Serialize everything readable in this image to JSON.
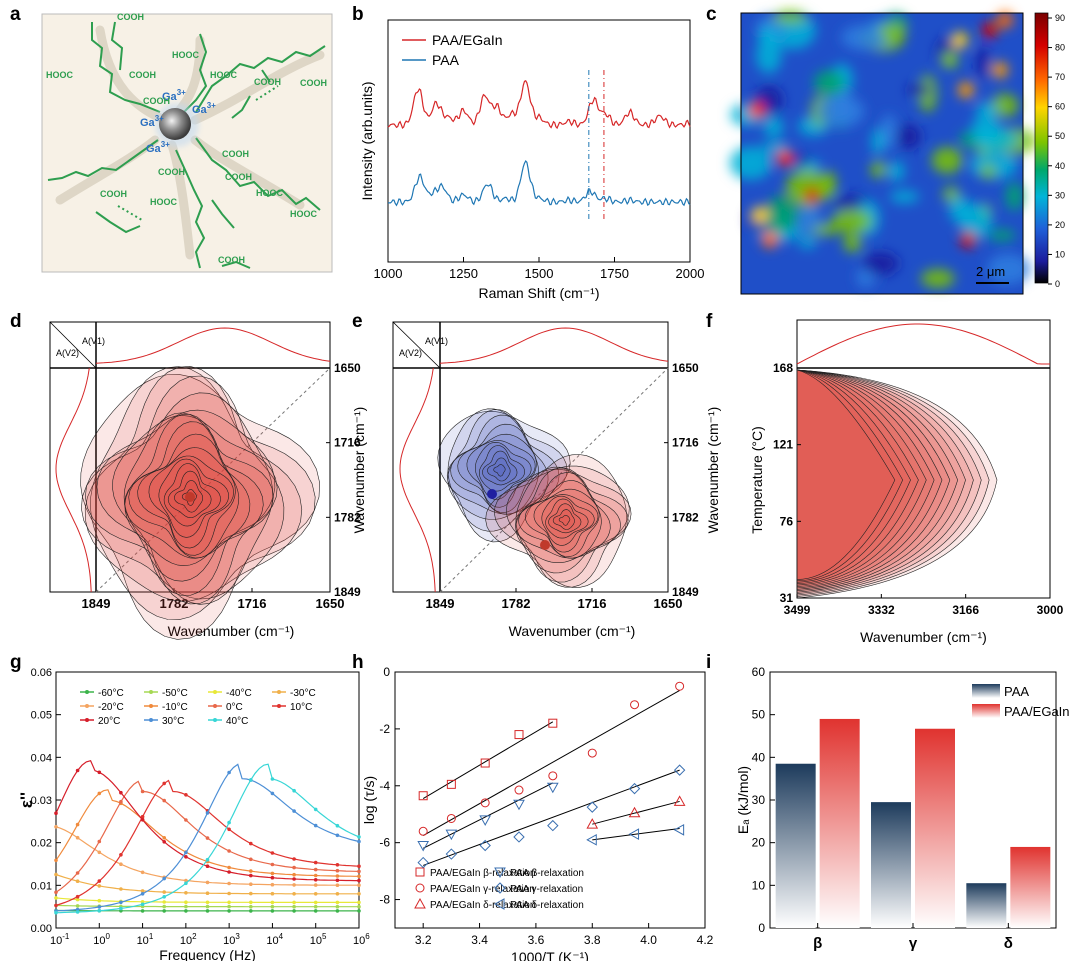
{
  "panel_labels": [
    "a",
    "b",
    "c",
    "d",
    "e",
    "f",
    "g",
    "h",
    "i"
  ],
  "colors": {
    "red": "#d62728",
    "blue": "#1f77b4",
    "green": "#2e9e4f",
    "navy": "#1d3b5c",
    "salmon": "#e0332f"
  },
  "panel_a": {
    "cooh": [
      "COOH",
      "COOH",
      "COOH",
      "COOH",
      "COOH",
      "COOH",
      "COOH",
      "COOH",
      "COOH",
      "COOH"
    ],
    "hooc": [
      "HOOC",
      "HOOC",
      "HOOC",
      "HOOC",
      "HOOC",
      "HOOC"
    ],
    "ga": [
      "Ga3+",
      "Ga3+",
      "Ga3+",
      "Ga3+"
    ]
  },
  "chart_data": [
    {
      "id": "b",
      "type": "line",
      "xlabel": "Raman Shift (cm⁻¹)",
      "ylabel": "Intensity (arb.units)",
      "xlim": [
        1000,
        2000
      ],
      "xticks": [
        "1000",
        "1250",
        "1500",
        "1750",
        "2000"
      ],
      "series": [
        {
          "name": "PAA/EGaIn",
          "color": "#d62728",
          "peaks": [
            [
              1000,
              0.0
            ],
            [
              1100,
              1.0
            ],
            [
              1160,
              0.6
            ],
            [
              1200,
              0.2
            ],
            [
              1250,
              0.4
            ],
            [
              1320,
              0.8
            ],
            [
              1360,
              0.5
            ],
            [
              1410,
              0.3
            ],
            [
              1455,
              1.2
            ],
            [
              1500,
              0.2
            ],
            [
              1600,
              0.1
            ],
            [
              1680,
              0.7
            ],
            [
              1720,
              0.3
            ],
            [
              1800,
              0.35
            ],
            [
              1900,
              0.25
            ],
            [
              2000,
              0.05
            ]
          ],
          "offset": 1
        },
        {
          "name": "PAA",
          "color": "#1f77b4",
          "peaks": [
            [
              1000,
              0.0
            ],
            [
              1105,
              0.7
            ],
            [
              1150,
              0.2
            ],
            [
              1180,
              0.4
            ],
            [
              1250,
              0.2
            ],
            [
              1330,
              0.5
            ],
            [
              1390,
              0.1
            ],
            [
              1455,
              1.1
            ],
            [
              1500,
              0.1
            ],
            [
              1600,
              0.05
            ],
            [
              1670,
              0.3
            ],
            [
              1720,
              0.1
            ],
            [
              1800,
              0.05
            ],
            [
              2000,
              0.0
            ]
          ],
          "offset": 0
        }
      ],
      "vlines": [
        1665,
        1715
      ]
    },
    {
      "id": "c",
      "type": "heatmap",
      "colorbar_ticks": [
        "90",
        "80",
        "70",
        "60",
        "50",
        "40",
        "30",
        "20",
        "10",
        "0"
      ],
      "scalebar": "2 μm"
    },
    {
      "id": "d",
      "type": "heatmap",
      "xlabel": "Wavenumber (cm⁻¹)",
      "ylabel": "",
      "xticks": [
        "1849",
        "1782",
        "1716",
        "1650"
      ],
      "yticks": [
        "1650",
        "1716",
        "1782",
        "1849"
      ],
      "corner": [
        "A(V1)",
        "A(V2)"
      ]
    },
    {
      "id": "e",
      "type": "heatmap",
      "xlabel": "Wavenumber (cm⁻¹)",
      "ylabel": "Wavenumber (cm⁻¹)",
      "xticks": [
        "1849",
        "1782",
        "1716",
        "1650"
      ],
      "yticks": [
        "1650",
        "1716",
        "1782",
        "1849"
      ],
      "corner": [
        "A(V1)",
        "A(V2)"
      ]
    },
    {
      "id": "f",
      "type": "heatmap",
      "xlabel": "Wavenumber (cm⁻¹)",
      "ylabel": "Temperature (°C)",
      "ylabel_d": "Wavenumber (cm⁻¹)",
      "xticks": [
        "3499",
        "3332",
        "3166",
        "3000"
      ],
      "yticks": [
        "168",
        "121",
        "76",
        "31"
      ]
    },
    {
      "id": "g",
      "type": "line",
      "xlabel": "Frequency (Hz)",
      "ylabel": "ε''",
      "ylim": [
        0,
        0.06
      ],
      "yticks": [
        "0.00",
        "0.01",
        "0.02",
        "0.03",
        "0.04",
        "0.05",
        "0.06"
      ],
      "xlim_log": [
        -1,
        6
      ],
      "xticks_exp": [
        "-1",
        "0",
        "1",
        "2",
        "3",
        "4",
        "5",
        "6"
      ],
      "series": [
        {
          "name": "-60°C",
          "color": "#3cb44b",
          "peak": [
            -5.0,
            0.007
          ],
          "base": 0.004
        },
        {
          "name": "-50°C",
          "color": "#a6d854",
          "peak": [
            -4.0,
            0.008
          ],
          "base": 0.005
        },
        {
          "name": "-40°C",
          "color": "#e8e838",
          "peak": [
            -3.0,
            0.01
          ],
          "base": 0.006
        },
        {
          "name": "-30°C",
          "color": "#f0b04a",
          "peak": [
            -2.0,
            0.015
          ],
          "base": 0.008
        },
        {
          "name": "-20°C",
          "color": "#f4a460",
          "peak": [
            -1.2,
            0.024
          ],
          "base": 0.01
        },
        {
          "name": "-10°C",
          "color": "#f08a3c",
          "peak": [
            0.2,
            0.03
          ],
          "base": 0.012
        },
        {
          "name": "0°C",
          "color": "#e8684a",
          "peak": [
            1.0,
            0.032
          ],
          "base": 0.013
        },
        {
          "name": "10°C",
          "color": "#e0332f",
          "peak": [
            1.7,
            0.032
          ],
          "base": 0.014
        },
        {
          "name": "20°C",
          "color": "#d61e2a",
          "peak": [
            -0.2,
            0.037
          ],
          "base": 0.011
        },
        {
          "name": "30°C",
          "color": "#4d8fd6",
          "peak": [
            3.3,
            0.035
          ],
          "base": 0.018
        },
        {
          "name": "40°C",
          "color": "#38d6d6",
          "peak": [
            3.9,
            0.035
          ],
          "base": 0.017
        }
      ]
    },
    {
      "id": "h",
      "type": "scatter",
      "xlabel": "1000/T (K⁻¹)",
      "ylabel": "log (τ/s)",
      "xlim": [
        3.1,
        4.2
      ],
      "ylim": [
        -9,
        0
      ],
      "xticks": [
        "3.2",
        "3.4",
        "3.6",
        "3.8",
        "4.0",
        "4.2"
      ],
      "yticks": [
        "0",
        "-2",
        "-4",
        "-6",
        "-8"
      ],
      "series": [
        {
          "name": "PAA/EGaIn β-relaxation",
          "marker": "square",
          "color": "#d62728",
          "x": [
            3.2,
            3.3,
            3.42,
            3.54,
            3.66
          ],
          "y": [
            -4.35,
            -3.95,
            -3.2,
            -2.2,
            -1.8
          ],
          "fit": [
            [
              3.2,
              -4.45
            ],
            [
              3.66,
              -1.75
            ]
          ]
        },
        {
          "name": "PAA/EGaIn γ-relaxation",
          "marker": "circle",
          "color": "#d62728",
          "x": [
            3.2,
            3.3,
            3.42,
            3.54,
            3.66,
            3.8,
            3.95,
            4.11
          ],
          "y": [
            -5.6,
            -5.15,
            -4.6,
            -4.15,
            -3.65,
            -2.85,
            -1.15,
            -0.5
          ],
          "fit": [
            [
              3.2,
              -5.75
            ],
            [
              4.11,
              -0.65
            ]
          ]
        },
        {
          "name": "PAA/EGaIn δ-relaxation",
          "marker": "triangle",
          "color": "#d62728",
          "x": [
            3.8,
            3.95,
            4.11
          ],
          "y": [
            -5.35,
            -4.95,
            -4.55
          ],
          "fit": [
            [
              3.8,
              -5.35
            ],
            [
              4.11,
              -4.55
            ]
          ]
        },
        {
          "name": "PAA β-relaxation",
          "marker": "triangle-down",
          "color": "#3a6fb0",
          "x": [
            3.2,
            3.3,
            3.42,
            3.54,
            3.66
          ],
          "y": [
            -6.1,
            -5.7,
            -5.2,
            -4.65,
            -4.05
          ],
          "fit": [
            [
              3.2,
              -6.2
            ],
            [
              3.66,
              -3.9
            ]
          ]
        },
        {
          "name": "PAA γ-relaxation",
          "marker": "diamond",
          "color": "#3a6fb0",
          "x": [
            3.2,
            3.3,
            3.42,
            3.54,
            3.66,
            3.8,
            3.95,
            4.11
          ],
          "y": [
            -6.7,
            -6.4,
            -6.1,
            -5.8,
            -5.4,
            -4.75,
            -4.1,
            -3.45
          ],
          "fit": [
            [
              3.2,
              -6.8
            ],
            [
              4.11,
              -3.45
            ]
          ]
        },
        {
          "name": "PAA δ-relaxation",
          "marker": "triangle-left",
          "color": "#3a6fb0",
          "x": [
            3.8,
            3.95,
            4.11
          ],
          "y": [
            -5.9,
            -5.7,
            -5.55
          ],
          "fit": [
            [
              3.8,
              -5.9
            ],
            [
              4.11,
              -5.5
            ]
          ]
        }
      ]
    },
    {
      "id": "i",
      "type": "bar",
      "ylabel": "Eₐ (kJ/mol)",
      "ylim": [
        0,
        60
      ],
      "yticks": [
        "0",
        "10",
        "20",
        "30",
        "40",
        "50",
        "60"
      ],
      "categories": [
        "β",
        "γ",
        "δ"
      ],
      "series": [
        {
          "name": "PAA",
          "color": "#1d3b5c",
          "values": [
            38.5,
            29.5,
            10.5
          ]
        },
        {
          "name": "PAA/EGaIn",
          "color": "#e0332f",
          "values": [
            49,
            46.7,
            19
          ]
        }
      ]
    }
  ]
}
